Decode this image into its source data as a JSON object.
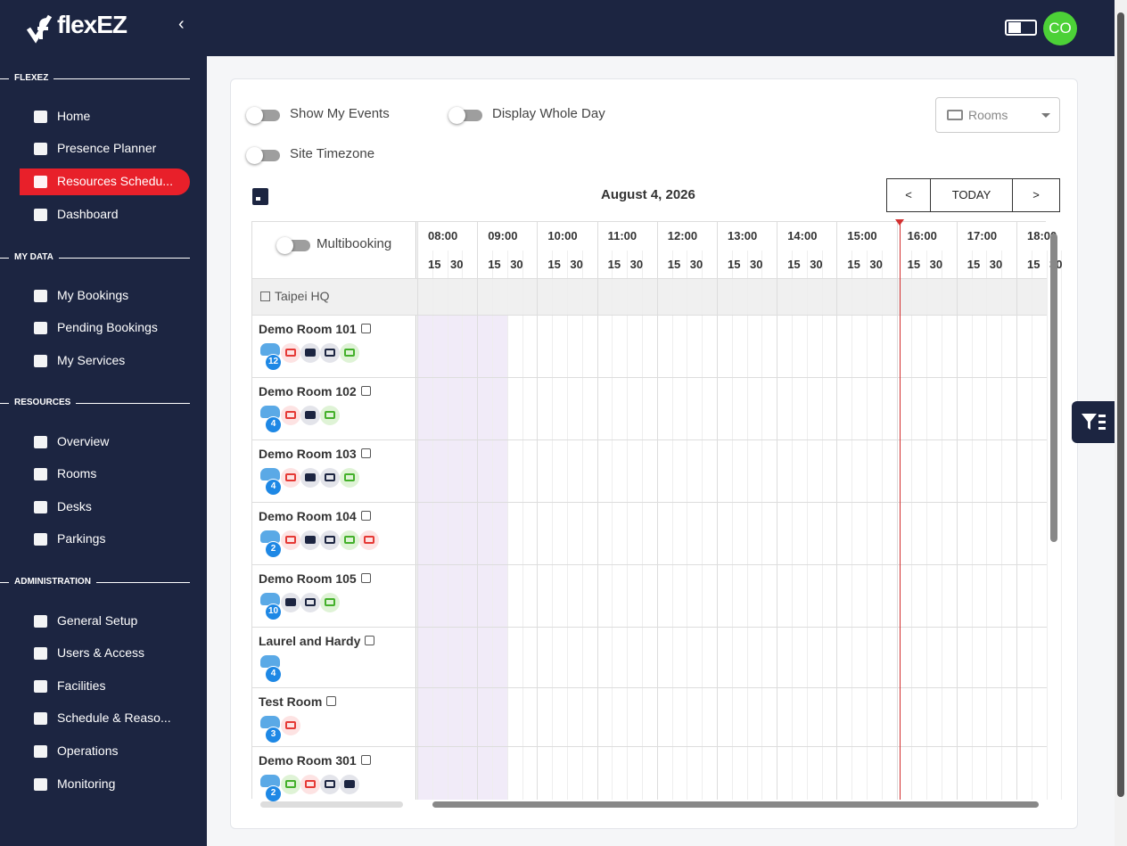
{
  "brand": "flexEZ",
  "header": {
    "avatar": "CO"
  },
  "sidebar": {
    "sections": [
      {
        "title": "FLEXEZ",
        "items": [
          "Home",
          "Presence Planner",
          "Resources Schedu...",
          "Dashboard"
        ]
      },
      {
        "title": "MY DATA",
        "items": [
          "My Bookings",
          "Pending Bookings",
          "My Services"
        ]
      },
      {
        "title": "RESOURCES",
        "items": [
          "Overview",
          "Rooms",
          "Desks",
          "Parkings"
        ]
      },
      {
        "title": "ADMINISTRATION",
        "items": [
          "General Setup",
          "Users & Access",
          "Facilities",
          "Schedule & Reaso...",
          "Operations",
          "Monitoring"
        ]
      }
    ]
  },
  "toolbar": {
    "toggles": [
      "Show My Events",
      "Display Whole Day",
      "Site Timezone"
    ],
    "resource_select": "Rooms",
    "date": "August 4, 2026",
    "nav": [
      "<",
      "TODAY",
      ">"
    ]
  },
  "schedule": {
    "multibooking": "Multibooking",
    "hours": [
      "08:00",
      "09:00",
      "10:00",
      "11:00",
      "12:00",
      "13:00",
      "14:00",
      "15:00",
      "16:00",
      "17:00",
      "18:00"
    ],
    "quarter_labels": [
      "15",
      "30"
    ],
    "group": "Taipei HQ",
    "rooms": [
      {
        "name": "Demo Room 101",
        "capacity": 12
      },
      {
        "name": "Demo Room 102",
        "capacity": 4
      },
      {
        "name": "Demo Room 103",
        "capacity": 4
      },
      {
        "name": "Demo Room 104",
        "capacity": 2
      },
      {
        "name": "Demo Room 105",
        "capacity": 10
      },
      {
        "name": "Laurel and Hardy",
        "capacity": 4
      },
      {
        "name": "Test Room",
        "capacity": 3
      },
      {
        "name": "Demo Room 301",
        "capacity": 2
      }
    ]
  }
}
